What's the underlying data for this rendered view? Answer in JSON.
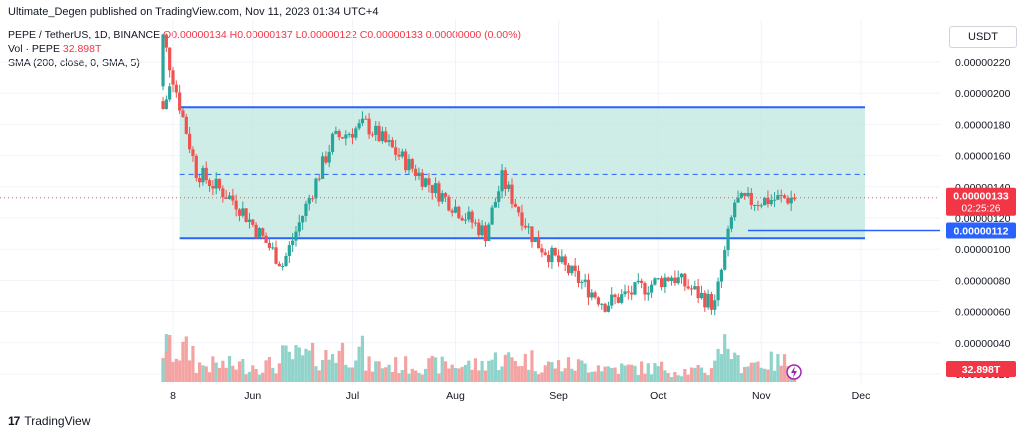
{
  "header": {
    "published": "Ultimate_Degen published on TradingView.com, Nov 11, 2023 01:34 UTC+4"
  },
  "legend": {
    "symbol": "PEPE / TetherUS, 1D, BINANCE",
    "ohlc": "O0.00000134 H0.00000137 L0.00000122 C0.00000133 0.00000000 (0.00%)",
    "volume_label": "Vol · PEPE",
    "volume_value": "32.898T",
    "sma_label": "SMA (200, close, 0, SMA, 5)"
  },
  "price_axis": {
    "unit": "USDT",
    "ticks": [
      "0.00000220",
      "0.00000200",
      "0.00000180",
      "0.00000160",
      "0.00000140",
      "0.00000120",
      "0.00000100",
      "0.00000080",
      "0.00000060",
      "0.00000040",
      "0.00000020"
    ],
    "last_price_label": "0.00000133",
    "countdown": "02:25:26",
    "support_label": "0.00000112",
    "volume_badge": "32.898T"
  },
  "colors": {
    "up": "#26a69a",
    "down": "#ef5350",
    "range_fill": "#bfe7df",
    "range_line": "#2962ff",
    "badge_red": "#f23645",
    "badge_blue": "#2962ff"
  },
  "footer": {
    "brand": "TradingView",
    "logo": "17"
  },
  "chart_data": {
    "type": "candlestick",
    "title": "",
    "x_tick_labels": [
      "8",
      "Jun",
      "Jul",
      "Aug",
      "Sep",
      "Oct",
      "Nov",
      "Dec"
    ],
    "ylim": [
      2e-07,
      2.3e-06
    ],
    "range_box": {
      "top": 1.91e-06,
      "bottom": 1.07e-06,
      "midline": 1.48e-06
    },
    "support_level": 1.12e-06,
    "last_close": 1.33e-06,
    "segments": [
      {
        "from": "May 5",
        "to": "May 8",
        "start": 1.9e-06,
        "end": 2.1e-06,
        "vol": 0.6
      },
      {
        "from": "May 8",
        "to": "May 15",
        "start": 2.1e-06,
        "end": 1.5e-06,
        "vol": 0.55
      },
      {
        "from": "May 15",
        "to": "May 27",
        "start": 1.5e-06,
        "end": 1.3e-06,
        "vol": 0.3
      },
      {
        "from": "May 27",
        "to": "Jun 10",
        "start": 1.3e-06,
        "end": 9e-07,
        "vol": 0.3
      },
      {
        "from": "Jun 10",
        "to": "Jun 25",
        "start": 9e-07,
        "end": 1.7e-06,
        "vol": 0.45
      },
      {
        "from": "Jun 25",
        "to": "Jul 5",
        "start": 1.7e-06,
        "end": 1.8e-06,
        "vol": 0.55
      },
      {
        "from": "Jul 5",
        "to": "Jul 25",
        "start": 1.8e-06,
        "end": 1.4e-06,
        "vol": 0.3
      },
      {
        "from": "Jul 25",
        "to": "Aug 10",
        "start": 1.4e-06,
        "end": 1.1e-06,
        "vol": 0.3
      },
      {
        "from": "Aug 10",
        "to": "Aug 15",
        "start": 1.1e-06,
        "end": 1.45e-06,
        "vol": 0.4
      },
      {
        "from": "Aug 15",
        "to": "Aug 25",
        "start": 1.45e-06,
        "end": 1.05e-06,
        "vol": 0.4
      },
      {
        "from": "Aug 25",
        "to": "Sep 15",
        "start": 1.05e-06,
        "end": 6.5e-07,
        "vol": 0.3
      },
      {
        "from": "Sep 15",
        "to": "Oct 5",
        "start": 6.5e-07,
        "end": 8.3e-07,
        "vol": 0.25
      },
      {
        "from": "Oct 5",
        "to": "Oct 18",
        "start": 8.3e-07,
        "end": 6.4e-07,
        "vol": 0.2
      },
      {
        "from": "Oct 18",
        "to": "Oct 24",
        "start": 6.4e-07,
        "end": 1.3e-06,
        "vol": 0.65
      },
      {
        "from": "Oct 24",
        "to": "Nov 11",
        "start": 1.3e-06,
        "end": 1.33e-06,
        "vol": 0.35
      }
    ],
    "volume_unit": "PEPE"
  }
}
